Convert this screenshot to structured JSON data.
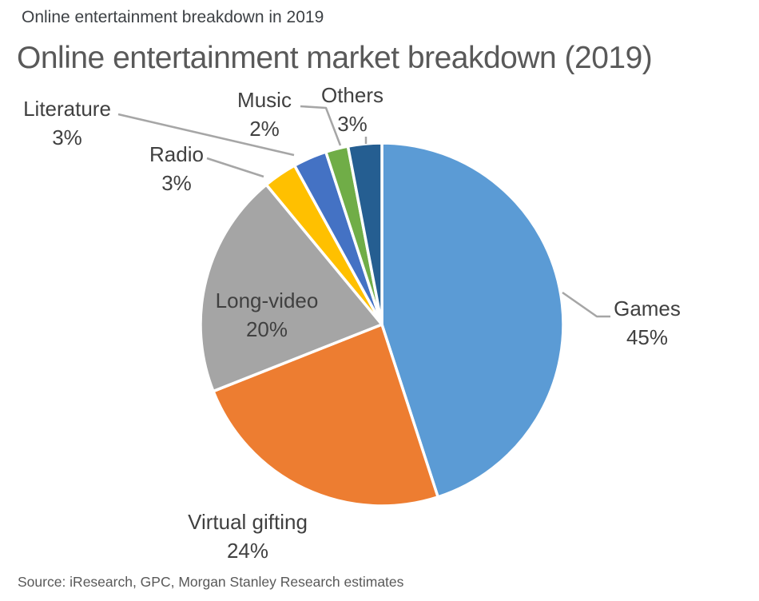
{
  "header": {
    "kicker": "Online entertainment breakdown in 2019",
    "title": "Online entertainment market breakdown (2019)"
  },
  "footer": {
    "source": "Source: iResearch, GPC, Morgan Stanley Research estimates"
  },
  "chart_data": {
    "type": "pie",
    "title": "Online entertainment market breakdown (2019)",
    "start_angle_deg": 0,
    "direction": "clockwise",
    "legend_position": "none",
    "label_style": "outside-with-leader-lines",
    "slice_border_color": "#ffffff",
    "leader_line_color": "#a6a6a6",
    "label_text_color": "#404040",
    "slices": [
      {
        "label": "Games",
        "value": 45,
        "pct": "45%",
        "color": "#5B9BD5"
      },
      {
        "label": "Virtual gifting",
        "value": 24,
        "pct": "24%",
        "color": "#ED7D31"
      },
      {
        "label": "Long-video",
        "value": 20,
        "pct": "20%",
        "color": "#A5A5A5"
      },
      {
        "label": "Radio",
        "value": 3,
        "pct": "3%",
        "color": "#FFC000"
      },
      {
        "label": "Literature",
        "value": 3,
        "pct": "3%",
        "color": "#4472C4"
      },
      {
        "label": "Music",
        "value": 2,
        "pct": "2%",
        "color": "#70AD47"
      },
      {
        "label": "Others",
        "value": 3,
        "pct": "3%",
        "color": "#255E91"
      }
    ]
  }
}
